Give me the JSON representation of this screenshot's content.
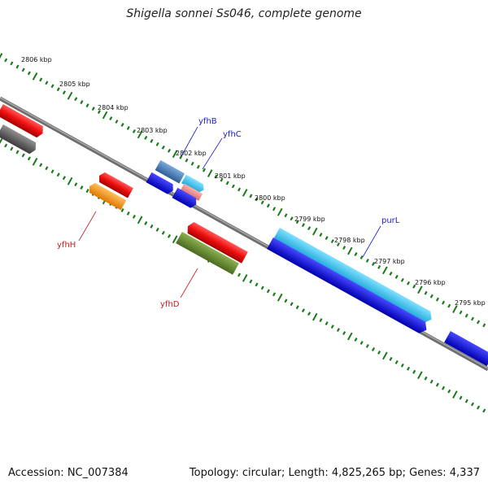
{
  "title": "Shigella sonnei Ss046, complete genome",
  "footer": {
    "accession": "Accession: NC_007384",
    "summary": "Topology: circular; Length: 4,825,265 bp; Genes: 4,337"
  },
  "colors": {
    "backbone": "#808080",
    "ticks": "#1a7a1a",
    "label_forward": "#1a1acc",
    "label_reverse": "#cc1a1a"
  },
  "tick_labels": [
    "2806 kbp",
    "2805 kbp",
    "2804 kbp",
    "2803 kbp",
    "2802 kbp",
    "2801 kbp",
    "2800 kbp",
    "2799 kbp",
    "2798 kbp",
    "2797 kbp",
    "2796 kbp",
    "2795 kbp"
  ],
  "genes": [
    {
      "label": "yfhB",
      "strand": "forward",
      "label_color": "#1a1acc"
    },
    {
      "label": "yfhC",
      "strand": "forward",
      "label_color": "#1a1acc"
    },
    {
      "label": "purL",
      "strand": "forward",
      "label_color": "#1a1acc"
    },
    {
      "label": "yfhH",
      "strand": "reverse",
      "label_color": "#cc1a1a"
    },
    {
      "label": "yfhD",
      "strand": "reverse",
      "label_color": "#cc1a1a"
    }
  ]
}
